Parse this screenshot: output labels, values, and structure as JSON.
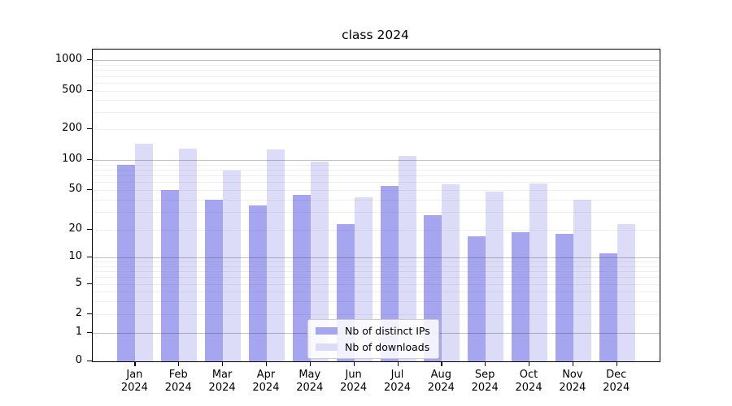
{
  "title": "class 2024",
  "chart_data": {
    "type": "bar",
    "title": "class 2024",
    "categories": [
      "Jan 2024",
      "Feb 2024",
      "Mar 2024",
      "Apr 2024",
      "May 2024",
      "Jun 2024",
      "Jul 2024",
      "Aug 2024",
      "Sep 2024",
      "Oct 2024",
      "Nov 2024",
      "Dec 2024"
    ],
    "series": [
      {
        "name": "Nb of distinct IPs",
        "color": "#a5a5f0",
        "values": [
          90,
          50,
          40,
          35,
          45,
          23,
          55,
          28,
          17,
          19,
          18,
          11
        ]
      },
      {
        "name": "Nb of downloads",
        "color": "#dcdcf8",
        "values": [
          145,
          130,
          78,
          127,
          96,
          42,
          110,
          57,
          48,
          58,
          40,
          23
        ]
      }
    ],
    "xlabel": "",
    "ylabel": "",
    "yscale": "symlog",
    "yticks": [
      0,
      1,
      2,
      5,
      10,
      20,
      50,
      100,
      200,
      500,
      1000
    ],
    "ylim": [
      0,
      1300
    ],
    "grid": "both",
    "legend_position": "lower center"
  },
  "legend": {
    "items": [
      {
        "label": "Nb of distinct IPs"
      },
      {
        "label": "Nb of downloads"
      }
    ]
  },
  "colors": {
    "bar_distinct_ips": "#a5a5f0",
    "bar_downloads": "#dcdcf8",
    "grid_major": "#b6b6b6",
    "grid_minor": "#e9e9e9",
    "axis": "#000000",
    "background": "#ffffff"
  }
}
